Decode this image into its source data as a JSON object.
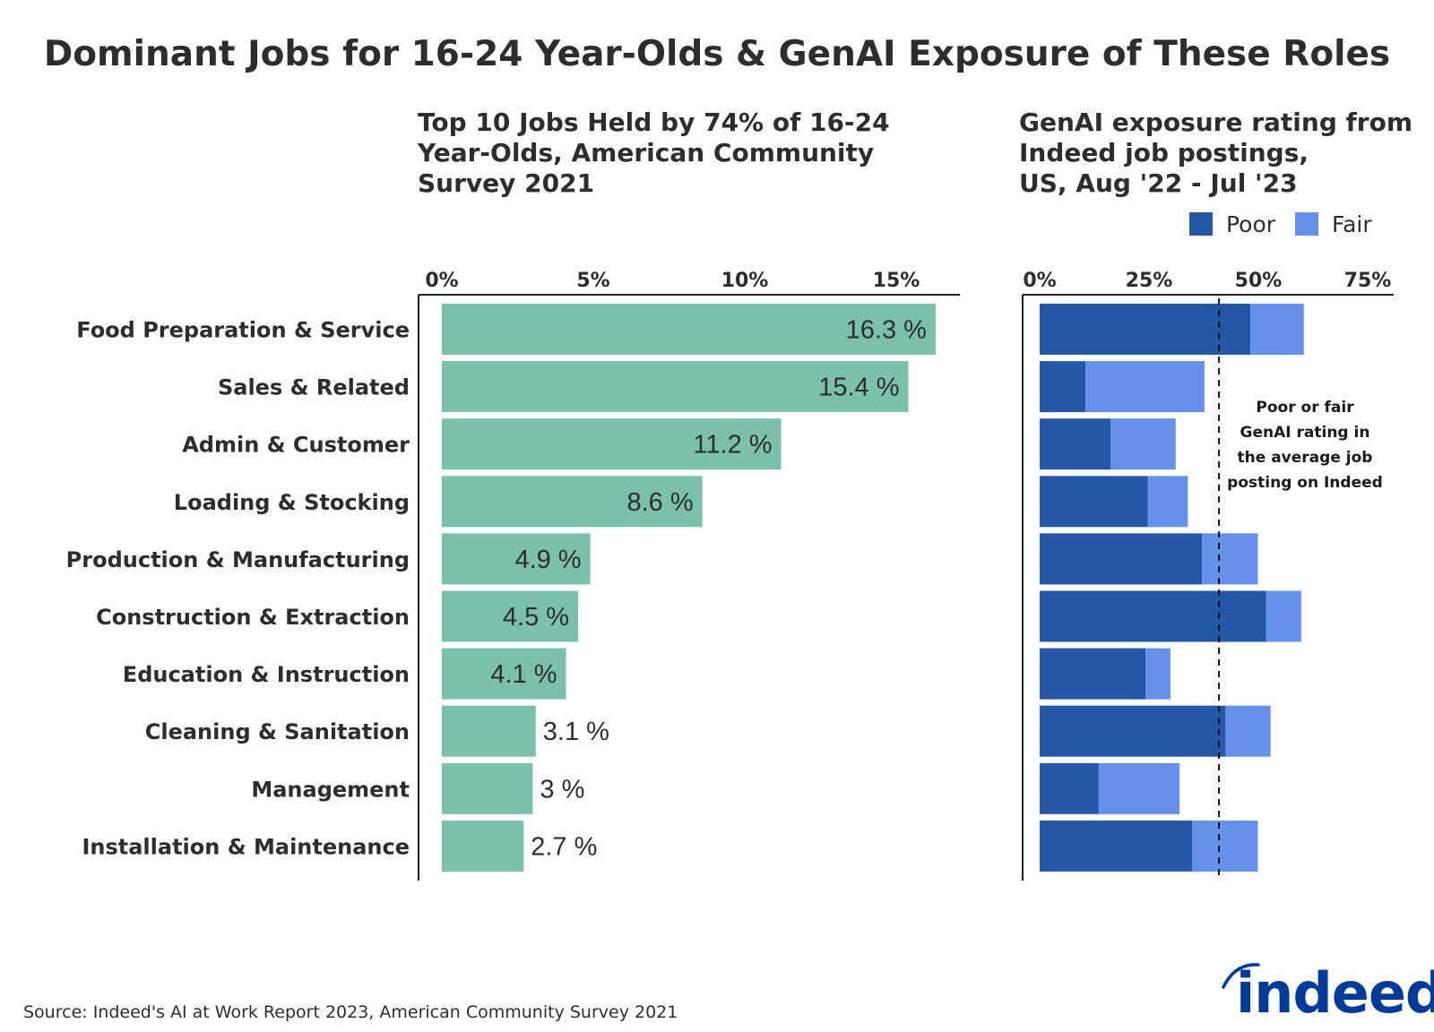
{
  "title": "Dominant Jobs for 16-24 Year-Olds & GenAI Exposure of These Roles",
  "source": "Source: Indeed's AI at Work Report 2023, American Community Survey 2021",
  "logo_text": "indeed",
  "colors": {
    "share": "#7bc0ad",
    "poor": "#2557a7",
    "fair": "#6591eb",
    "logo": "#003a9b",
    "text": "#2d2d2d"
  },
  "chart_data": [
    {
      "type": "bar",
      "orientation": "horizontal",
      "title_lines": [
        "Top 10 Jobs Held by 74% of 16-24",
        "Year-Olds, American Community",
        "Survey 2021"
      ],
      "categories": [
        "Food Preparation & Service",
        "Sales & Related",
        "Admin & Customer",
        "Loading & Stocking",
        "Production & Manufacturing",
        "Construction & Extraction",
        "Education & Instruction",
        "Cleaning & Sanitation",
        "Management",
        "Installation & Maintenance"
      ],
      "values": [
        16.3,
        15.4,
        11.2,
        8.6,
        4.9,
        4.5,
        4.1,
        3.1,
        3,
        2.7
      ],
      "data_labels": [
        "16.3 %",
        "15.4 %",
        "11.2 %",
        "8.6 %",
        "4.9 %",
        "4.5 %",
        "4.1 %",
        "3.1 %",
        "3 %",
        "2.7 %"
      ],
      "x_ticks": [
        "0%",
        "5%",
        "10%",
        "15%"
      ],
      "x_tick_values": [
        0,
        5,
        10,
        15
      ],
      "xlim": [
        0,
        17.5
      ],
      "grid": false
    },
    {
      "type": "bar",
      "orientation": "horizontal",
      "stacked": true,
      "title_lines": [
        "GenAI exposure rating from",
        "Indeed job postings,",
        "US, Aug '22 - Jul '23"
      ],
      "legend_position": "top-right",
      "series": [
        {
          "name": "Poor",
          "values": [
            48.2,
            10.5,
            16.2,
            24.7,
            37.1,
            51.8,
            24.2,
            42.5,
            13.5,
            34.9
          ]
        },
        {
          "name": "Fair",
          "values": [
            12.2,
            27.2,
            14.9,
            9.2,
            12.8,
            8.0,
            5.7,
            10.3,
            18.5,
            15.0
          ]
        }
      ],
      "x_ticks": [
        "0%",
        "25%",
        "50%",
        "75%"
      ],
      "x_tick_values": [
        0,
        25,
        50,
        75
      ],
      "xlim": [
        0,
        80
      ],
      "reference_line": {
        "value": 41,
        "style": "dashed"
      },
      "annotation_lines": [
        "Poor or fair",
        "GenAI rating in",
        "the average job",
        "posting on Indeed"
      ],
      "grid": false
    }
  ]
}
